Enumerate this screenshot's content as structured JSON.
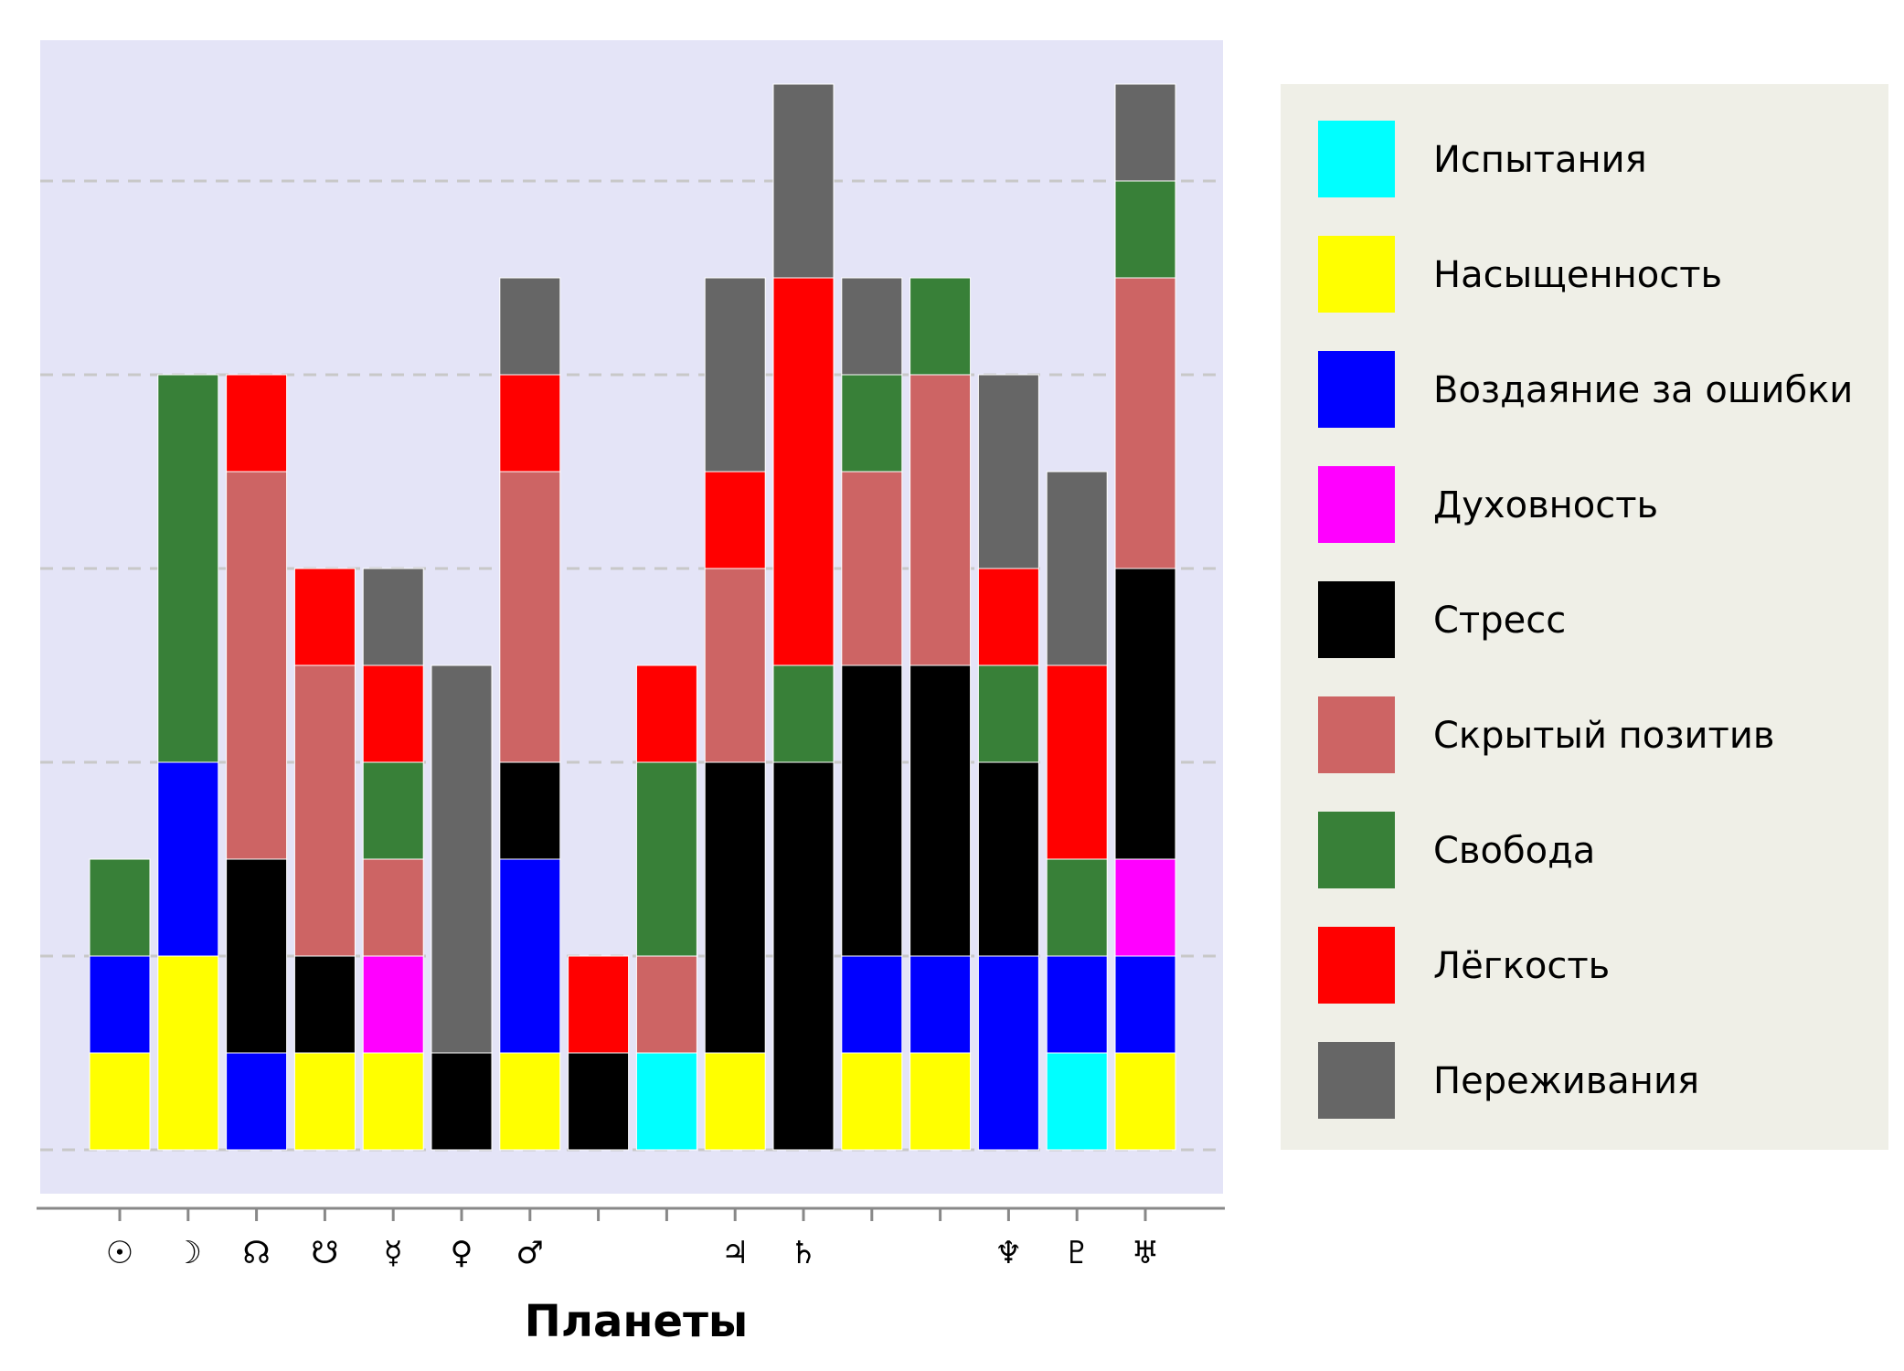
{
  "chart_data": {
    "type": "bar",
    "stacked": true,
    "title": "",
    "xlabel": "Планеты",
    "ylabel": "",
    "ylim": [
      0,
      11.5
    ],
    "grid": true,
    "legend_position": "right",
    "categories": [
      "☉",
      "☽",
      "☊",
      "☋",
      "☿",
      "♀",
      "♂",
      "",
      "",
      "♃",
      "♄",
      "",
      "",
      "♆",
      "♇",
      "♅"
    ],
    "series": [
      {
        "name": "Испытания",
        "color": "#00ffff",
        "values": [
          0,
          0,
          0,
          0,
          0,
          0,
          0,
          0,
          1,
          0,
          0,
          0,
          0,
          0,
          1,
          0
        ]
      },
      {
        "name": "Насыщенность",
        "color": "#ffff00",
        "values": [
          1,
          2,
          0,
          1,
          1,
          0,
          1,
          0,
          0,
          1,
          0,
          1,
          1,
          0,
          0,
          1
        ]
      },
      {
        "name": "Воздаяние за ошибки",
        "color": "#0000ff",
        "values": [
          1,
          2,
          1,
          0,
          0,
          0,
          2,
          0,
          0,
          0,
          0,
          1,
          1,
          2,
          1,
          1
        ]
      },
      {
        "name": "Духовность",
        "color": "#ff00ff",
        "values": [
          0,
          0,
          0,
          0,
          1,
          0,
          0,
          0,
          0,
          0,
          0,
          0,
          0,
          0,
          0,
          1
        ]
      },
      {
        "name": "Стресс",
        "color": "#000000",
        "values": [
          0,
          0,
          2,
          1,
          0,
          1,
          1,
          1,
          0,
          3,
          4,
          3,
          3,
          2,
          0,
          3
        ]
      },
      {
        "name": "Скрытый позитив",
        "color": "#cd6464",
        "values": [
          0,
          0,
          4,
          3,
          1,
          0,
          3,
          0,
          1,
          2,
          0,
          2,
          3,
          0,
          0,
          3
        ]
      },
      {
        "name": "Свобода",
        "color": "#388038",
        "values": [
          1,
          4,
          0,
          0,
          1,
          0,
          0,
          0,
          2,
          0,
          1,
          1,
          1,
          1,
          1,
          1
        ]
      },
      {
        "name": "Лёгкость",
        "color": "#ff0000",
        "values": [
          0,
          0,
          1,
          1,
          1,
          0,
          1,
          1,
          1,
          1,
          4,
          0,
          0,
          1,
          2,
          0
        ]
      },
      {
        "name": "Переживания",
        "color": "#666666",
        "values": [
          0,
          0,
          0,
          0,
          1,
          4,
          1,
          0,
          0,
          2,
          2,
          1,
          0,
          2,
          2,
          1
        ]
      }
    ]
  }
}
